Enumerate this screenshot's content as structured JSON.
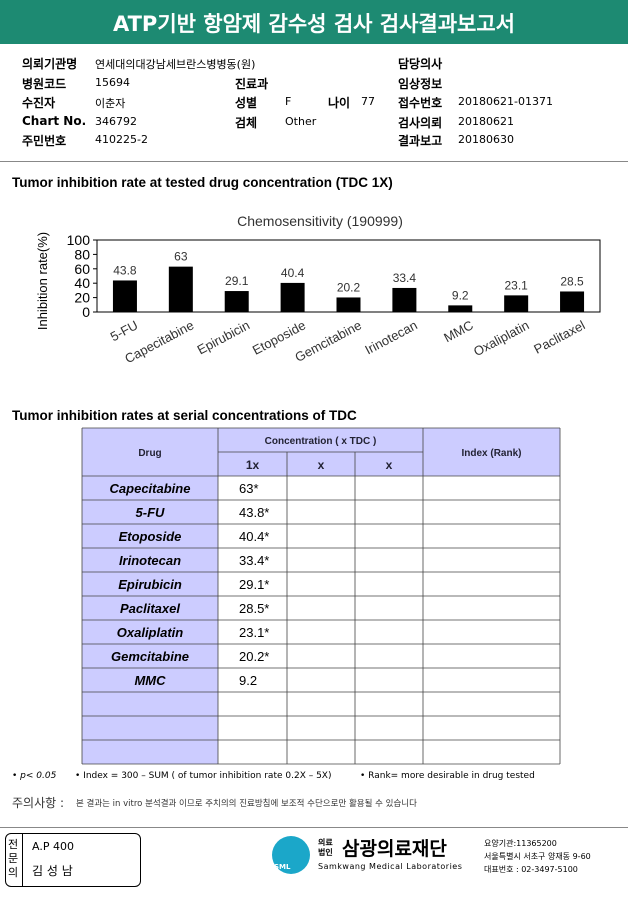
{
  "header": {
    "title": "ATP기반 항암제 감수성 검사 검사결과보고서"
  },
  "info": {
    "institution": {
      "label": "의뢰기관명",
      "value": "연세대의대강남세브란스병병동(원)"
    },
    "doctor": {
      "label": "담당의사"
    },
    "hospital_code": {
      "label": "병원코드",
      "value": "15694"
    },
    "department": {
      "label": "진료과"
    },
    "clinical_info": {
      "label": "임상정보"
    },
    "patient": {
      "label": "수진자",
      "value": "이춘자"
    },
    "sex": {
      "label": "성별",
      "value": "F"
    },
    "age": {
      "label": "나이",
      "value": "77"
    },
    "receipt_no": {
      "label": "접수번호",
      "value": "20180621-01371"
    },
    "chart_no": {
      "label": "Chart No.",
      "value": "346792"
    },
    "specimen": {
      "label": "검체",
      "value": "Other"
    },
    "request_date": {
      "label": "검사의뢰",
      "value": "20180621"
    },
    "id_no": {
      "label": "주민번호",
      "value": "410225-2"
    },
    "report_date": {
      "label": "결과보고",
      "value": "20180630"
    }
  },
  "section1": {
    "title": "Tumor inhibition rate at tested drug concentration (TDC 1X)"
  },
  "chart_data": {
    "type": "bar",
    "title": "Chemosensitivity (190999)",
    "y_label": "Inhibition rate(%)",
    "categories": [
      "5-FU",
      "Capecitabine",
      "Epirubicin",
      "Etoposide",
      "Gemcitabine",
      "Irinotecan",
      "MMC",
      "Oxaliplatin",
      "Paclitaxel"
    ],
    "values": [
      43.8,
      63,
      29.1,
      40.4,
      20.2,
      33.4,
      9.2,
      23.1,
      28.5
    ],
    "color": "#000000",
    "ylim": [
      0,
      100
    ],
    "yticks": [
      0,
      20,
      40,
      60,
      80,
      100
    ],
    "grid": false
  },
  "section2": {
    "title": "Tumor inhibition rates at serial concentrations of TDC"
  },
  "table": {
    "headers": {
      "drug": "Drug",
      "concentration": "Concentration ( x TDC )",
      "sub": [
        "1x",
        "x",
        "x"
      ],
      "index": "Index (Rank)"
    },
    "rows": [
      [
        "Capecitabine",
        "63*"
      ],
      [
        "5-FU",
        "43.8*"
      ],
      [
        "Etoposide",
        "40.4*"
      ],
      [
        "Irinotecan",
        "33.4*"
      ],
      [
        "Epirubicin",
        "29.1*"
      ],
      [
        "Paclitaxel",
        "28.5*"
      ],
      [
        "Oxaliplatin",
        "23.1*"
      ],
      [
        "Gemcitabine",
        "20.2*"
      ],
      [
        "MMC",
        "9.2"
      ]
    ]
  },
  "footnotes": [
    "p< 0.05",
    "Index = 300 – SUM ( of tumor inhibition rate 0.2X – 5X)",
    "Rank= more desirable in drug tested"
  ],
  "notice": {
    "label": "주의사항 :",
    "text": "본 결과는 in vitro 분석결과 이므로 주치의의 진료방침에 보조적 수단으로만 활용될 수 있습니다"
  },
  "footer": {
    "stamp_title": "전문의",
    "license": "A.P 400",
    "doctor": "김 성 남",
    "logo": "SML",
    "corp_type": "의료법인",
    "org": "삼광의료재단",
    "org_en": "Samkwang Medical Laboratories",
    "code": "요양기관:11365200",
    "address": "서울특별시 서초구 양재동 9-60",
    "phone": "대표번호 : 02-3497-5100"
  }
}
